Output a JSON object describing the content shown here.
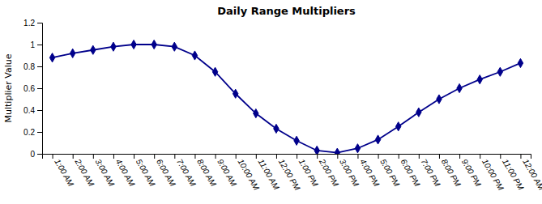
{
  "chart_data": {
    "type": "line",
    "title": "Daily Range Multipliers",
    "ylabel": "Multiplier Value",
    "categories": [
      "1:00 AM",
      "2:00 AM",
      "3:00 AM",
      "4:00 AM",
      "5:00 AM",
      "6:00 AM",
      "7:00 AM",
      "8:00 AM",
      "9:00 AM",
      "10:00 AM",
      "11:00 AM",
      "12:00 PM",
      "1:00 PM",
      "2:00 PM",
      "3:00 PM",
      "4:00 PM",
      "5:00 PM",
      "6:00 PM",
      "7:00 PM",
      "8:00 PM",
      "9:00 PM",
      "10:00 PM",
      "11:00 PM",
      "12:00 AM"
    ],
    "values": [
      0.88,
      0.92,
      0.95,
      0.98,
      1.0,
      1.0,
      0.98,
      0.9,
      0.75,
      0.55,
      0.37,
      0.23,
      0.12,
      0.03,
      0.01,
      0.05,
      0.13,
      0.25,
      0.38,
      0.5,
      0.6,
      0.68,
      0.75,
      0.83
    ],
    "color": "#00008B",
    "marker": "diamond",
    "ylim": [
      0,
      1.2
    ],
    "yticks": [
      0,
      0.2,
      0.4,
      0.6,
      0.8,
      1,
      1.2
    ],
    "grid": false
  }
}
